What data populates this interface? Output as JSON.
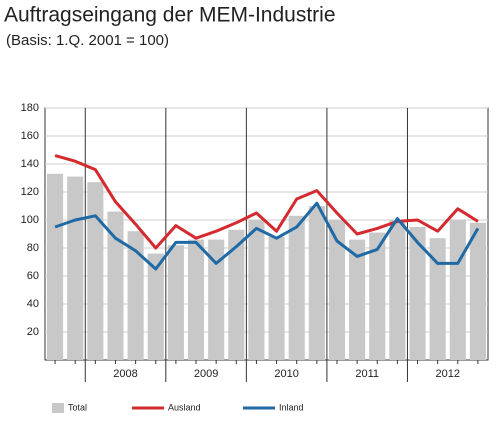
{
  "chart_data": {
    "type": "bar_line",
    "title": "Auftragseingang der MEM-Industrie",
    "subtitle": "(Basis: 1.Q. 2001 = 100)",
    "categories": [
      null,
      null,
      null,
      null,
      null,
      null,
      null,
      null,
      null,
      null,
      null,
      null,
      null,
      null,
      null,
      null,
      null,
      null,
      null,
      null,
      null,
      null
    ],
    "years": [
      "2008",
      "2009",
      "2010",
      "2011",
      "2012"
    ],
    "series": [
      {
        "name": "Total",
        "kind": "bar",
        "color": "#c8c8c8",
        "values": [
          133,
          131,
          127,
          106,
          92,
          76,
          82,
          86,
          86,
          93,
          100,
          88,
          103,
          110,
          100,
          86,
          91,
          100,
          95,
          87,
          100,
          98
        ]
      },
      {
        "name": "Ausland",
        "kind": "line",
        "color": "#d42a2f",
        "values": [
          146,
          142,
          136,
          113,
          97,
          80,
          96,
          87,
          92,
          98,
          105,
          92,
          115,
          121,
          105,
          90,
          94,
          99,
          100,
          92,
          108,
          99
        ]
      },
      {
        "name": "Inland",
        "kind": "line",
        "color": "#1f6aa5",
        "values": [
          95,
          100,
          103,
          87,
          78,
          65,
          84,
          84,
          69,
          81,
          94,
          87,
          95,
          112,
          85,
          74,
          79,
          101,
          84,
          69,
          69,
          94
        ]
      }
    ],
    "ylim": [
      0,
      180
    ],
    "yticks": [
      20,
      40,
      60,
      80,
      100,
      120,
      140,
      160,
      180
    ],
    "grid": true
  }
}
